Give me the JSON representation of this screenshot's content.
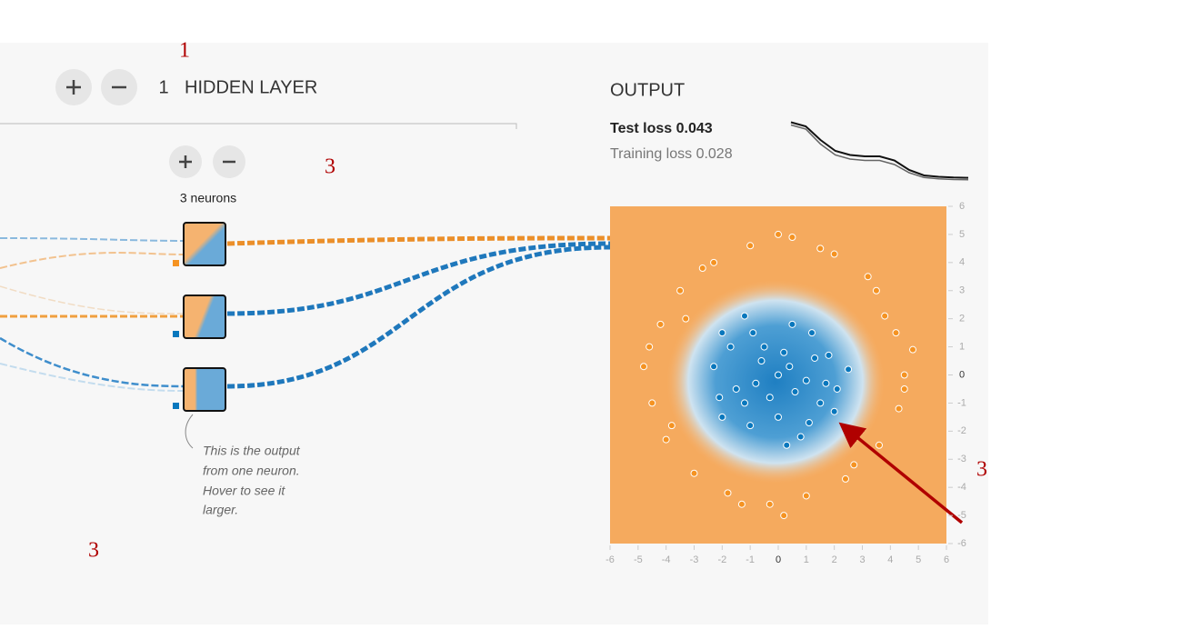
{
  "annotations": [
    "1",
    "3",
    "3",
    "3"
  ],
  "layer_controls": {
    "count": "1",
    "label": "HIDDEN LAYER"
  },
  "neuron_controls": {
    "label": "3 neurons"
  },
  "callout": [
    "This is the output",
    "from one neuron.",
    "Hover to see it",
    "larger."
  ],
  "output": {
    "title": "OUTPUT",
    "test_loss_label": "Test loss",
    "test_loss": 0.043,
    "training_loss_label": "Training loss",
    "training_loss": 0.028,
    "loss_history": {
      "test": [
        0.45,
        0.42,
        0.32,
        0.24,
        0.21,
        0.2,
        0.2,
        0.17,
        0.1,
        0.06,
        0.05,
        0.045,
        0.043
      ],
      "training": [
        0.43,
        0.4,
        0.29,
        0.21,
        0.18,
        0.17,
        0.17,
        0.14,
        0.08,
        0.045,
        0.035,
        0.03,
        0.028
      ]
    }
  },
  "chart_data": {
    "type": "scatter",
    "xlim": [
      -6,
      6
    ],
    "ylim": [
      -6,
      6
    ],
    "xticks": [
      -6,
      -5,
      -4,
      -3,
      -2,
      -1,
      0,
      1,
      2,
      3,
      4,
      5,
      6
    ],
    "yticks": [
      6,
      5,
      4,
      3,
      2,
      1,
      0,
      -1,
      -2,
      -3,
      -4,
      -5,
      -6
    ],
    "series": [
      {
        "color": "#0877bd",
        "x": [
          -2,
          -1.2,
          -0.5,
          0.5,
          1.2,
          1.8,
          2.5,
          -2.3,
          -1.5,
          -0.8,
          0,
          0.4,
          1,
          1.5,
          2,
          -2,
          -1,
          0,
          0.8,
          1.1,
          -1.7,
          -0.3,
          0.2,
          1.7,
          -1.2,
          0.6,
          -0.6,
          1.3,
          2.1,
          0.3,
          -2.1,
          -0.9
        ],
        "values": [
          1.5,
          2.1,
          1,
          1.8,
          1.5,
          0.7,
          0.2,
          0.3,
          -0.5,
          -0.3,
          0,
          0.3,
          -0.2,
          -1,
          -1.3,
          -1.5,
          -1.8,
          -1.5,
          -2.2,
          -1.7,
          1,
          -0.8,
          0.8,
          -0.3,
          -1,
          -0.6,
          0.5,
          0.6,
          -0.5,
          -2.5,
          -0.8,
          1.5
        ]
      },
      {
        "color": "#f59322",
        "x": [
          4.5,
          4.2,
          3.5,
          2,
          0.5,
          -1,
          -2.3,
          -3.5,
          -4.2,
          -4.8,
          -4.5,
          -4,
          -3,
          -1.8,
          -0.3,
          1,
          2.4,
          3.6,
          4.3,
          4.8,
          3.8,
          -3.3,
          -3.8,
          1.5,
          -1.3,
          2.7,
          4.5,
          -4.6,
          0,
          0.2,
          3.2,
          -2.7
        ],
        "values": [
          0,
          1.5,
          3,
          4.3,
          4.9,
          4.6,
          4,
          3,
          1.8,
          0.3,
          -1,
          -2.3,
          -3.5,
          -4.2,
          -4.6,
          -4.3,
          -3.7,
          -2.5,
          -1.2,
          0.9,
          2.1,
          2,
          -1.8,
          4.5,
          -4.6,
          -3.2,
          -0.5,
          1,
          5,
          -5,
          3.5,
          3.8
        ]
      }
    ]
  }
}
